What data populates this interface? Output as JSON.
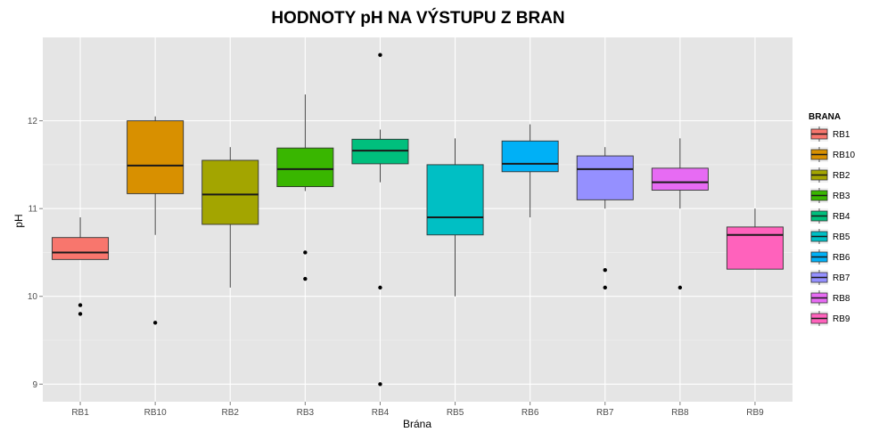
{
  "chart_data": {
    "type": "boxplot",
    "title": "HODNOTY pH NA VÝSTUPU Z BRAN",
    "xlabel": "Brána",
    "ylabel": "pH",
    "ylim": [
      8.8,
      12.95
    ],
    "yticks": [
      9,
      10,
      11,
      12
    ],
    "grid": true,
    "legend": {
      "title": "BRANA",
      "position": "right"
    },
    "categories": [
      "RB1",
      "RB10",
      "RB2",
      "RB3",
      "RB4",
      "RB5",
      "RB6",
      "RB7",
      "RB8",
      "RB9"
    ],
    "boxes": [
      {
        "name": "RB1",
        "color": "#F8766D",
        "whisker_low": 10.42,
        "q1": 10.42,
        "median": 10.5,
        "q3": 10.67,
        "whisker_high": 10.9,
        "outliers": [
          9.9,
          9.8
        ]
      },
      {
        "name": "RB10",
        "color": "#D89000",
        "whisker_low": 10.7,
        "q1": 11.17,
        "median": 11.49,
        "q3": 12.0,
        "whisker_high": 12.05,
        "outliers": [
          9.7
        ]
      },
      {
        "name": "RB2",
        "color": "#A3A500",
        "whisker_low": 10.1,
        "q1": 10.82,
        "median": 11.16,
        "q3": 11.55,
        "whisker_high": 11.7,
        "outliers": []
      },
      {
        "name": "RB3",
        "color": "#39B600",
        "whisker_low": 11.2,
        "q1": 11.25,
        "median": 11.45,
        "q3": 11.69,
        "whisker_high": 12.3,
        "outliers": [
          10.5,
          10.2
        ]
      },
      {
        "name": "RB4",
        "color": "#00BF7D",
        "whisker_low": 11.3,
        "q1": 11.51,
        "median": 11.66,
        "q3": 11.79,
        "whisker_high": 11.9,
        "outliers": [
          12.75,
          10.1,
          9.0
        ]
      },
      {
        "name": "RB5",
        "color": "#00BFC4",
        "whisker_low": 10.0,
        "q1": 10.7,
        "median": 10.9,
        "q3": 11.5,
        "whisker_high": 11.8,
        "outliers": []
      },
      {
        "name": "RB6",
        "color": "#00B0F6",
        "whisker_low": 10.9,
        "q1": 11.42,
        "median": 11.51,
        "q3": 11.77,
        "whisker_high": 11.96,
        "outliers": []
      },
      {
        "name": "RB7",
        "color": "#9590FF",
        "whisker_low": 11.0,
        "q1": 11.1,
        "median": 11.45,
        "q3": 11.6,
        "whisker_high": 11.7,
        "outliers": [
          10.3,
          10.1
        ]
      },
      {
        "name": "RB8",
        "color": "#E76BF3",
        "whisker_low": 11.0,
        "q1": 11.21,
        "median": 11.3,
        "q3": 11.46,
        "whisker_high": 11.8,
        "outliers": [
          10.1
        ]
      },
      {
        "name": "RB9",
        "color": "#FF62BC",
        "whisker_low": 10.31,
        "q1": 10.31,
        "median": 10.7,
        "q3": 10.79,
        "whisker_high": 11.0,
        "outliers": []
      }
    ]
  }
}
